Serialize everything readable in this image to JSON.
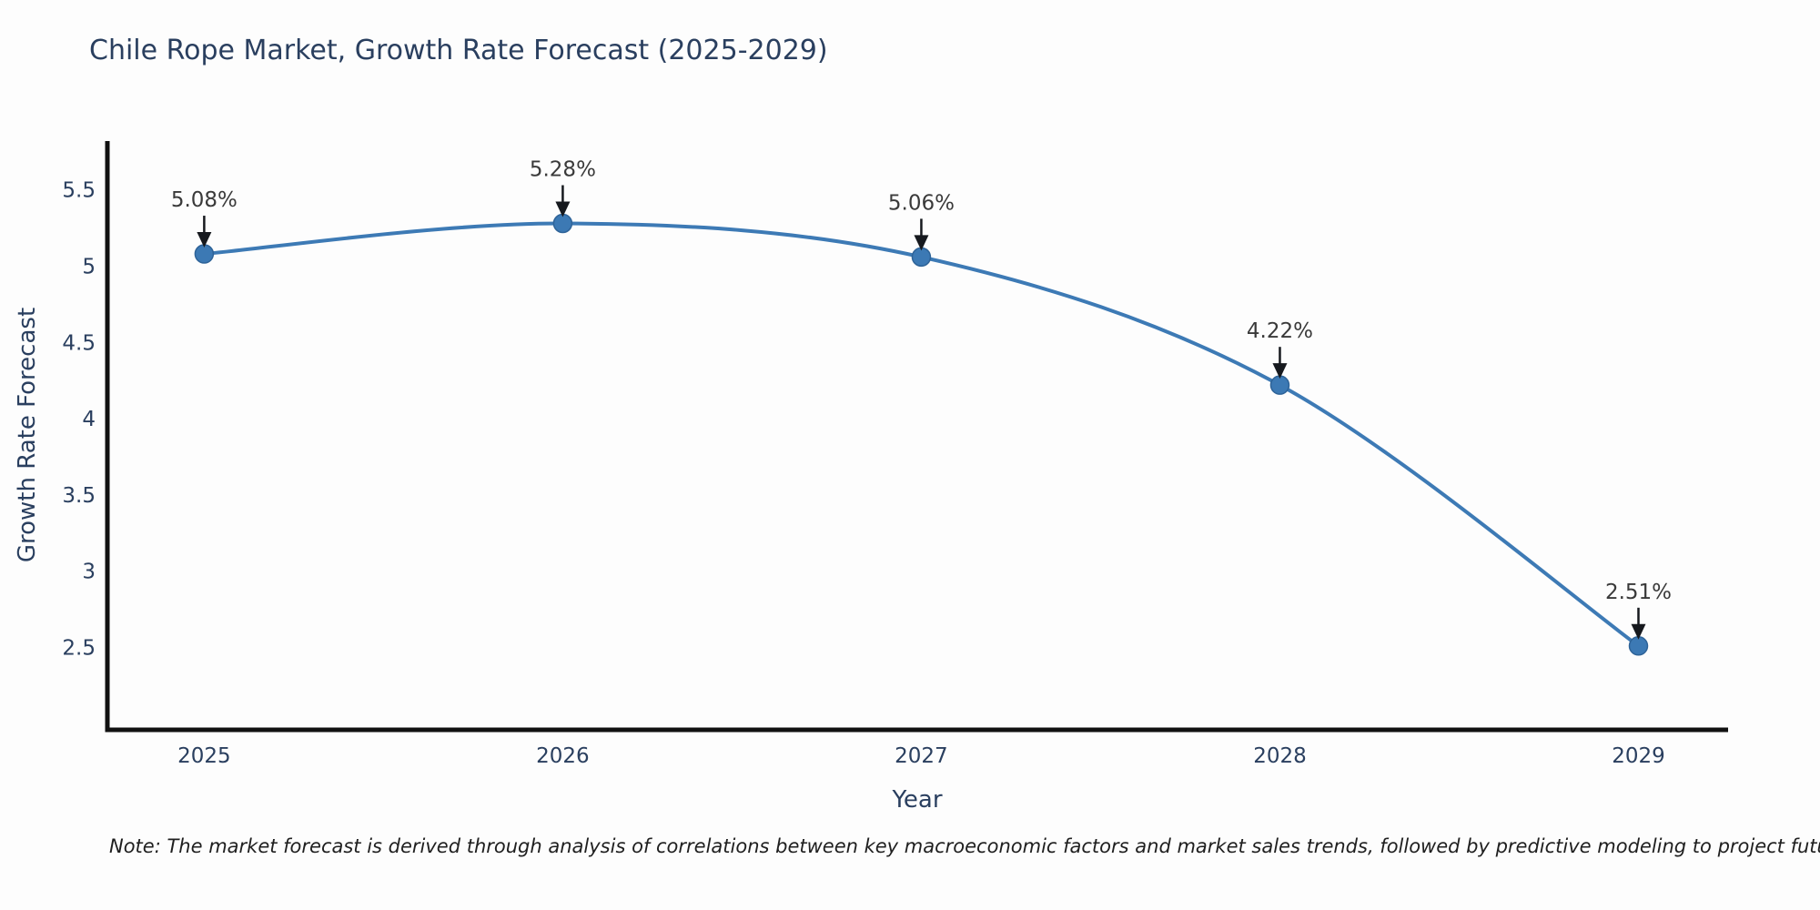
{
  "figure": {
    "note": "Note: The market forecast is derived through analysis of correlations between key macroeconomic factors and market sales trends, followed by predictive modeling to project future sales"
  },
  "chart_data": {
    "type": "line",
    "title": "Chile Rope Market, Growth Rate Forecast (2025-2029)",
    "xlabel": "Year",
    "ylabel": "Growth Rate Forecast",
    "x": [
      2025,
      2026,
      2027,
      2028,
      2029
    ],
    "values": [
      5.08,
      5.28,
      5.06,
      4.22,
      2.51
    ],
    "point_labels": [
      "5.08%",
      "5.28%",
      "5.06%",
      "4.22%",
      "2.51%"
    ],
    "xticks": [
      "2025",
      "2026",
      "2027",
      "2028",
      "2029"
    ],
    "yticks": [
      "5.5",
      "5",
      "4.5",
      "4",
      "3.5",
      "3",
      "2.5"
    ],
    "ytick_values": [
      5.5,
      5,
      4.5,
      4,
      3.5,
      3,
      2.5
    ],
    "xlim": [
      2024.73,
      2029.25
    ],
    "ylim": [
      1.96,
      5.82
    ],
    "grid": false,
    "legend": "none",
    "line_shape": "spline",
    "colors": {
      "line": "#3d7ab5",
      "marker": "#3c79b4",
      "marker_edge": "#2e6398",
      "arrow": "#16191e",
      "axis_line": "#111111",
      "annotation_text": "#3a3a3a",
      "tick_text": "#2a3f5f",
      "title_text": "#2a3f5f",
      "background": "#fdfdfd"
    }
  }
}
